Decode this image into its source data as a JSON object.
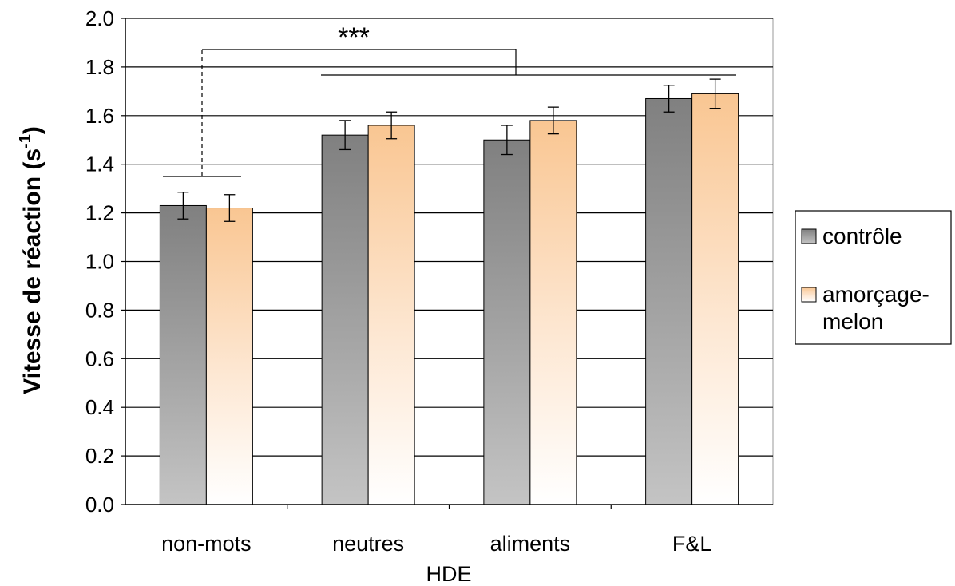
{
  "chart_data": {
    "type": "bar",
    "ylabel": "Vitesse de réaction (s",
    "ylabel_superscript": "-1",
    "ylabel_close": ")",
    "xlabel": "HDE",
    "ylim": [
      0,
      2.0
    ],
    "yticks": [
      "0.0",
      "0.2",
      "0.4",
      "0.6",
      "0.8",
      "1.0",
      "1.2",
      "1.4",
      "1.6",
      "1.8",
      "2.0"
    ],
    "grid": true,
    "legend_position": "right",
    "categories": [
      "non-mots",
      "neutres",
      "aliments",
      "F&L"
    ],
    "series": [
      {
        "name": "contrôle",
        "values": [
          1.23,
          1.52,
          1.5,
          1.67
        ],
        "errors": [
          0.055,
          0.06,
          0.06,
          0.055
        ],
        "color": "#808080"
      },
      {
        "name": "amorçage-melon",
        "values": [
          1.22,
          1.56,
          1.58,
          1.69
        ],
        "errors": [
          0.055,
          0.055,
          0.055,
          0.06
        ],
        "color": "#f9c692"
      }
    ],
    "annotation": {
      "text": "***"
    }
  }
}
